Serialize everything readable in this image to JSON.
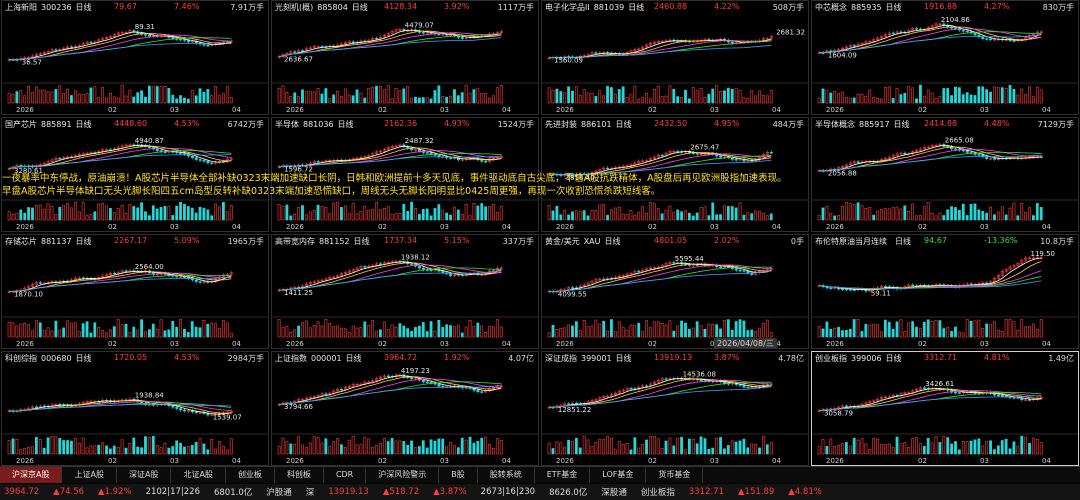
{
  "panels": [
    {
      "name": "上海新阳",
      "code": "300236",
      "period": "日线",
      "price": "79.67",
      "change": "7.46%",
      "volume": "7.91万手",
      "color": "#ff3b3b",
      "high": "89.31",
      "low": "36.57"
    },
    {
      "name": "光刻机(概)",
      "code": "885804",
      "period": "日线",
      "price": "4128.34",
      "change": "3.92%",
      "volume": "1117万手",
      "color": "#ff3b3b",
      "high": "4479.07",
      "low": "2636.67"
    },
    {
      "name": "电子化学品II",
      "code": "881039",
      "period": "日线",
      "price": "2460.88",
      "change": "4.22%",
      "volume": "508万手",
      "color": "#ff3b3b",
      "high": "2681.32",
      "low": "1560.09"
    },
    {
      "name": "中芯概念",
      "code": "885935",
      "period": "日线",
      "price": "1916.88",
      "change": "4.27%",
      "volume": "830万手",
      "color": "#ff3b3b",
      "high": "2104.86",
      "low": "1604.09"
    },
    {
      "name": "国产芯片",
      "code": "885891",
      "period": "日线",
      "price": "4448.60",
      "change": "4.53%",
      "volume": "6742万手",
      "color": "#ff3b3b",
      "high": "4940.87",
      "low": "3280.61"
    },
    {
      "name": "半导体",
      "code": "881036",
      "period": "日线",
      "price": "2162.36",
      "change": "4.93%",
      "volume": "1524万手",
      "color": "#ff3b3b",
      "high": "2487.32",
      "low": "1596.72"
    },
    {
      "name": "先进封装",
      "code": "886101",
      "period": "日线",
      "price": "2432.50",
      "change": "4.95%",
      "volume": "484万手",
      "color": "#ff3b3b",
      "high": "2675.47",
      "low": "1818.40"
    },
    {
      "name": "半导体概念",
      "code": "885917",
      "period": "日线",
      "price": "2414.88",
      "change": "4.48%",
      "volume": "7129万手",
      "color": "#ff3b3b",
      "high": "2665.08",
      "low": "2056.88"
    },
    {
      "name": "存储芯片",
      "code": "881137",
      "period": "日线",
      "price": "2267.17",
      "change": "5.09%",
      "volume": "1965万手",
      "color": "#ff3b3b",
      "high": "2564.00",
      "low": "1870.10"
    },
    {
      "name": "高带宽内存",
      "code": "881152",
      "period": "日线",
      "price": "1737.34",
      "change": "5.15%",
      "volume": "337万手",
      "color": "#ff3b3b",
      "high": "1938.12",
      "low": "1411.25"
    },
    {
      "name": "黄金/美元",
      "code": "XAU",
      "period": "日线",
      "price": "4801.05",
      "change": "2.02%",
      "volume": "0手",
      "color": "#ff3b3b",
      "high": "5595.44",
      "low": "4099.55"
    },
    {
      "name": "布伦特原油当月连续",
      "code": "",
      "period": "日线",
      "price": "94.67",
      "change": "-13.36%",
      "volume": "10.8万手",
      "color": "#2fe62f",
      "high": "119.50",
      "low": "59.11"
    },
    {
      "name": "科创综指",
      "code": "000680",
      "period": "日线",
      "price": "1720.05",
      "change": "4.53%",
      "volume": "2984万手",
      "color": "#ff3b3b",
      "high": "1938.84",
      "low": "1539.07"
    },
    {
      "name": "上证指数",
      "code": "000001",
      "period": "日线",
      "price": "3964.72",
      "change": "1.92%",
      "volume": "4.07亿",
      "color": "#ff3b3b",
      "high": "4197.23",
      "low": "3794.66"
    },
    {
      "name": "深证成指",
      "code": "399001",
      "period": "日线",
      "price": "13919.13",
      "change": "3.87%",
      "volume": "4.78亿",
      "color": "#ff3b3b",
      "high": "14536.08",
      "low": "12851.22"
    },
    {
      "name": "创业板指",
      "code": "399006",
      "period": "日线",
      "price": "3312.71",
      "change": "4.81%",
      "volume": "1.49亿",
      "color": "#ff3b3b",
      "high": "3426.61",
      "low": "3058.79",
      "selected": true
    }
  ],
  "axis_labels": [
    "2026",
    "02",
    "03",
    "04"
  ],
  "overlay": [
    "一夜暴率中东停战，原油崩溃！A股芯片半导体全部补缺0323末端加速缺口长阴，日韩和欧洲提前十多天见底，事件驱动底自古尖底，不信A股抗跌精体，A股盘后再见欧洲股指加速表现。",
    "早盘A股芯片半导体缺口无头光脚长阳四五cm岛型反转补缺0323末端加速恐慌缺口，周线无头无脚长阳明显比0425周更强，再现一次收割恐慌杀跌短线客。"
  ],
  "date_tag": "2026/04/08/三",
  "tabs": [
    "沪深京A股",
    "上证A股",
    "深证A股",
    "北证A股",
    "创业板",
    "科创板",
    "CDR",
    "沪深风险警示",
    "B股",
    "股转系统",
    "ETF基金",
    "LOF基金",
    "货币基金"
  ],
  "status_bar": [
    {
      "text": "3964.72",
      "color": "#ff3b3b"
    },
    {
      "text": "▲74.56",
      "color": "#ff3b3b"
    },
    {
      "text": "▲1.92%",
      "color": "#ff3b3b"
    },
    {
      "text": "2102|17|226",
      "color": "#dddddd"
    },
    {
      "text": "6801.0亿",
      "color": "#dddddd"
    },
    {
      "text": "沪股通",
      "color": "#dddddd"
    },
    {
      "text": "深",
      "color": "#dddddd"
    },
    {
      "text": "13919.13",
      "color": "#ff3b3b"
    },
    {
      "text": "▲518.72",
      "color": "#ff3b3b"
    },
    {
      "text": "▲3.87%",
      "color": "#ff3b3b"
    },
    {
      "text": "2673|16|230",
      "color": "#dddddd"
    },
    {
      "text": "8626.0亿",
      "color": "#dddddd"
    },
    {
      "text": "深股通",
      "color": "#dddddd"
    },
    {
      "text": "创业板指",
      "color": "#dddddd"
    },
    {
      "text": "3312.71",
      "color": "#ff3b3b"
    },
    {
      "text": "▲151.89",
      "color": "#ff3b3b"
    },
    {
      "text": "▲4.81%",
      "color": "#ff3b3b"
    }
  ]
}
